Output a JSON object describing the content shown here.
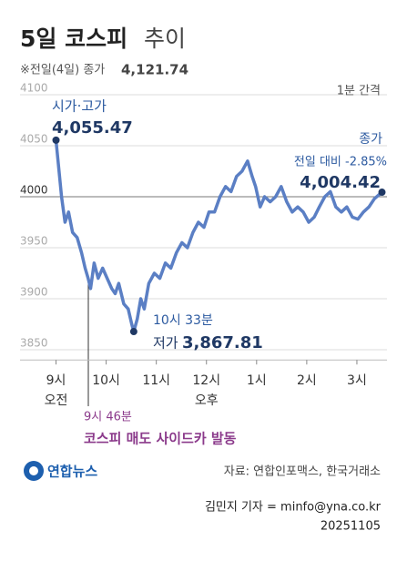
{
  "chart_data": {
    "type": "line",
    "title_main": "5일 코스피",
    "title_suffix": "추이",
    "subtitle_label": "※전일(4일) 종가",
    "subtitle_value": "4,121.74",
    "interval_note": "1분 간격",
    "x": [
      9.0,
      9.07,
      9.11,
      9.18,
      9.25,
      9.33,
      9.42,
      9.51,
      9.58,
      9.64,
      9.69,
      9.76,
      9.84,
      9.93,
      10.02,
      10.11,
      10.18,
      10.25,
      10.35,
      10.44,
      10.51,
      10.55,
      10.62,
      10.69,
      10.76,
      10.85,
      10.96,
      11.07,
      11.18,
      11.29,
      11.4,
      11.51,
      11.62,
      11.73,
      11.84,
      11.95,
      12.05,
      12.16,
      12.27,
      12.38,
      12.49,
      12.6,
      12.71,
      12.82,
      12.91,
      12.98,
      13.07,
      13.16,
      13.27,
      13.38,
      13.49,
      13.6,
      13.71,
      13.82,
      13.93,
      14.04,
      14.15,
      14.25,
      14.36,
      14.47,
      14.58,
      14.69,
      14.8,
      14.91,
      15.02,
      15.13,
      15.24,
      15.35,
      15.5
    ],
    "series": [
      {
        "color": "#5b7fc4",
        "values": [
          4055.47,
          4020,
          4000,
          3975,
          3985,
          3965,
          3960,
          3945,
          3930,
          3920,
          3910,
          3935,
          3920,
          3930,
          3920,
          3910,
          3905,
          3915,
          3895,
          3890,
          3875,
          3867.81,
          3880,
          3900,
          3890,
          3915,
          3925,
          3920,
          3935,
          3930,
          3945,
          3955,
          3950,
          3965,
          3975,
          3970,
          3985,
          3985,
          4000,
          4010,
          4005,
          4020,
          4025,
          4035,
          4020,
          4010,
          3990,
          4000,
          3995,
          4000,
          4010,
          3995,
          3985,
          3990,
          3985,
          3975,
          3980,
          3990,
          4000,
          4005,
          3990,
          3985,
          3990,
          3980,
          3978,
          3985,
          3990,
          3998,
          4004.42
        ]
      }
    ],
    "xlim": [
      8.7,
      15.6
    ],
    "xticks": [
      {
        "value": 9,
        "label": "9시"
      },
      {
        "value": 10,
        "label": "10시"
      },
      {
        "value": 11,
        "label": "11시"
      },
      {
        "value": 12,
        "label": "12시"
      },
      {
        "value": 13,
        "label": "1시"
      },
      {
        "value": 14,
        "label": "2시"
      },
      {
        "value": 15,
        "label": "3시"
      }
    ],
    "ylim": [
      3840,
      4100
    ],
    "yticks": [
      3850,
      3900,
      3950,
      4000,
      4050,
      4100
    ],
    "grid": true,
    "am_label": "오전",
    "pm_label": "오후",
    "annotations": {
      "open_label": "시가·고가",
      "open_value": "4,055.47",
      "close_label": "종가",
      "close_change": "전일 대비 -2.85%",
      "close_value": "4,004.42",
      "low_time": "10시 33분",
      "low_label": "저가",
      "low_value": "3,867.81",
      "sidecar_time": "9시 46분",
      "sidecar_text": "코스피 매도 사이드카 발동"
    }
  },
  "footer": {
    "logo": "연합뉴스",
    "source": "자료: 연합인포맥스, 한국거래소",
    "reporter": "김민지 기자 = minfo@yna.co.kr",
    "date": "20251105"
  }
}
